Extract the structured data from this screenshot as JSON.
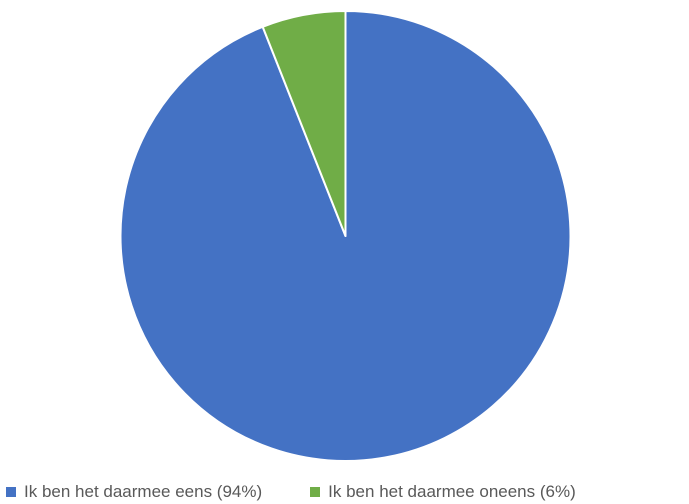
{
  "chart_data": {
    "type": "pie",
    "title": "",
    "start_angle_deg": 0,
    "direction": "clockwise",
    "slices": [
      {
        "label": "Ik ben het daarmee eens (94%)",
        "value": 94,
        "color": "#4472c4"
      },
      {
        "label": "Ik ben het daarmee oneens (6%)",
        "value": 6,
        "color": "#70ad47"
      }
    ],
    "legend": {
      "position": "bottom"
    }
  }
}
